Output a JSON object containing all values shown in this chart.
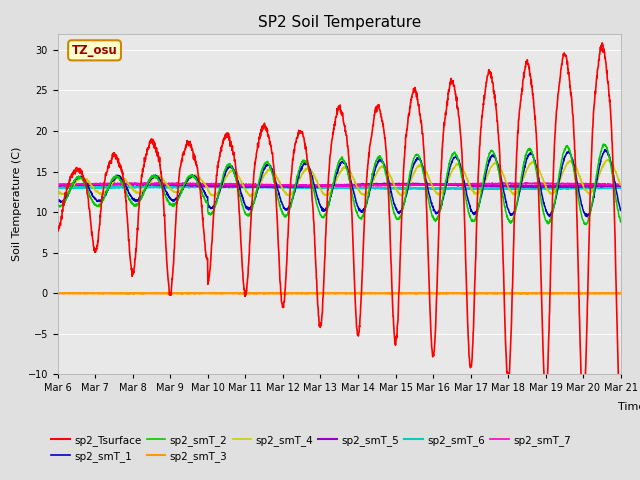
{
  "title": "SP2 Soil Temperature",
  "ylabel": "Soil Temperature (C)",
  "xlabel": "Time",
  "timezone_label": "TZ_osu",
  "ylim": [
    -10,
    32
  ],
  "yticks": [
    -10,
    -5,
    0,
    5,
    10,
    15,
    20,
    25,
    30
  ],
  "fig_bg": "#e0e0e0",
  "plot_bg": "#e8e8e8",
  "grid_color": "#ffffff",
  "series": {
    "sp2_Tsurface": {
      "color": "#ff0000",
      "lw": 1.2
    },
    "sp2_smT_1": {
      "color": "#0000cc",
      "lw": 1.1
    },
    "sp2_smT_2": {
      "color": "#00cc00",
      "lw": 1.1
    },
    "sp2_smT_3": {
      "color": "#ff9900",
      "lw": 1.5
    },
    "sp2_smT_4": {
      "color": "#cccc00",
      "lw": 1.1
    },
    "sp2_smT_5": {
      "color": "#9900cc",
      "lw": 1.5
    },
    "sp2_smT_6": {
      "color": "#00cccc",
      "lw": 1.5
    },
    "sp2_smT_7": {
      "color": "#ff00cc",
      "lw": 1.1
    }
  },
  "title_fontsize": 11,
  "axis_fontsize": 8,
  "tick_fontsize": 7,
  "legend_fontsize": 7.5
}
